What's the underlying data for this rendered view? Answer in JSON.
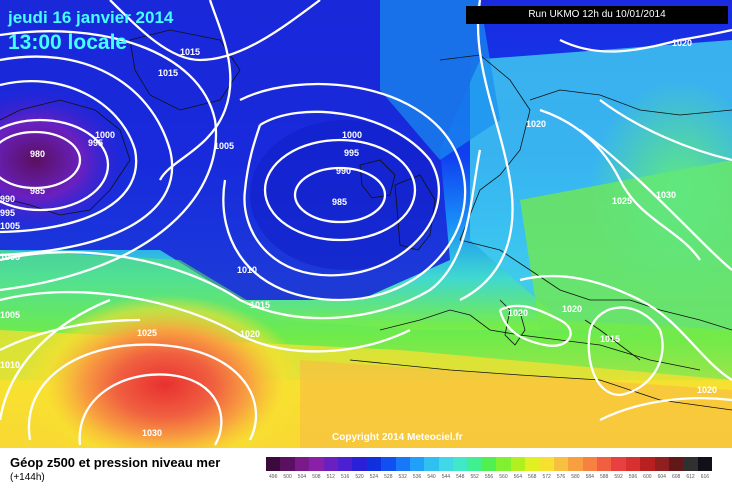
{
  "header": {
    "date": "jeudi 16 janvier 2014",
    "time": "13:00 locale",
    "run": "Run UKMO 12h du 10/01/2014"
  },
  "copyright": "Copyright 2014 Meteociel.fr",
  "legend": {
    "title": "Géop z500 et pression niveau mer",
    "subtitle": "(+144h)",
    "scale_ticks": [
      "496",
      "500",
      "504",
      "508",
      "512",
      "516",
      "520",
      "524",
      "528",
      "532",
      "536",
      "540",
      "544",
      "548",
      "552",
      "556",
      "560",
      "564",
      "568",
      "572",
      "576",
      "580",
      "584",
      "588",
      "592",
      "596",
      "600",
      "604",
      "608",
      "612",
      "616"
    ],
    "scale_colors": [
      "#3a0a3a",
      "#5a1060",
      "#7a1a8a",
      "#8a20a8",
      "#6a20c0",
      "#4a20d0",
      "#2a20d8",
      "#1030e0",
      "#1050f0",
      "#1878f8",
      "#20a0f8",
      "#30c0f0",
      "#40d8e8",
      "#40e8c8",
      "#40f090",
      "#50f050",
      "#80f030",
      "#b0f020",
      "#e0f020",
      "#f8e030",
      "#f8c040",
      "#f8a040",
      "#f88040",
      "#f06040",
      "#e84040",
      "#d83030",
      "#b82020",
      "#902020",
      "#601818",
      "#303030",
      "#101018"
    ]
  },
  "isobar_labels": [
    {
      "text": "1015"
    },
    {
      "text": "1015"
    },
    {
      "text": "980"
    },
    {
      "text": "985"
    },
    {
      "text": "990"
    },
    {
      "text": "995"
    },
    {
      "text": "1000"
    },
    {
      "text": "1005"
    },
    {
      "text": "1000"
    },
    {
      "text": "995"
    },
    {
      "text": "990"
    },
    {
      "text": "985"
    },
    {
      "text": "1010"
    },
    {
      "text": "1015"
    },
    {
      "text": "1020"
    },
    {
      "text": "1025"
    },
    {
      "text": "1030"
    },
    {
      "text": "1020"
    },
    {
      "text": "1020"
    },
    {
      "text": "1025"
    },
    {
      "text": "1030"
    },
    {
      "text": "1020"
    },
    {
      "text": "1020"
    },
    {
      "text": "1015"
    },
    {
      "text": "1020"
    },
    {
      "text": "1005"
    },
    {
      "text": "1010"
    },
    {
      "text": "1005"
    },
    {
      "text": "995"
    },
    {
      "text": "1005"
    },
    {
      "text": "1020"
    }
  ],
  "colors": {
    "title": "#44ffff",
    "low": "#1030e0",
    "high": "#f04030",
    "isobar": "#ffffff"
  }
}
